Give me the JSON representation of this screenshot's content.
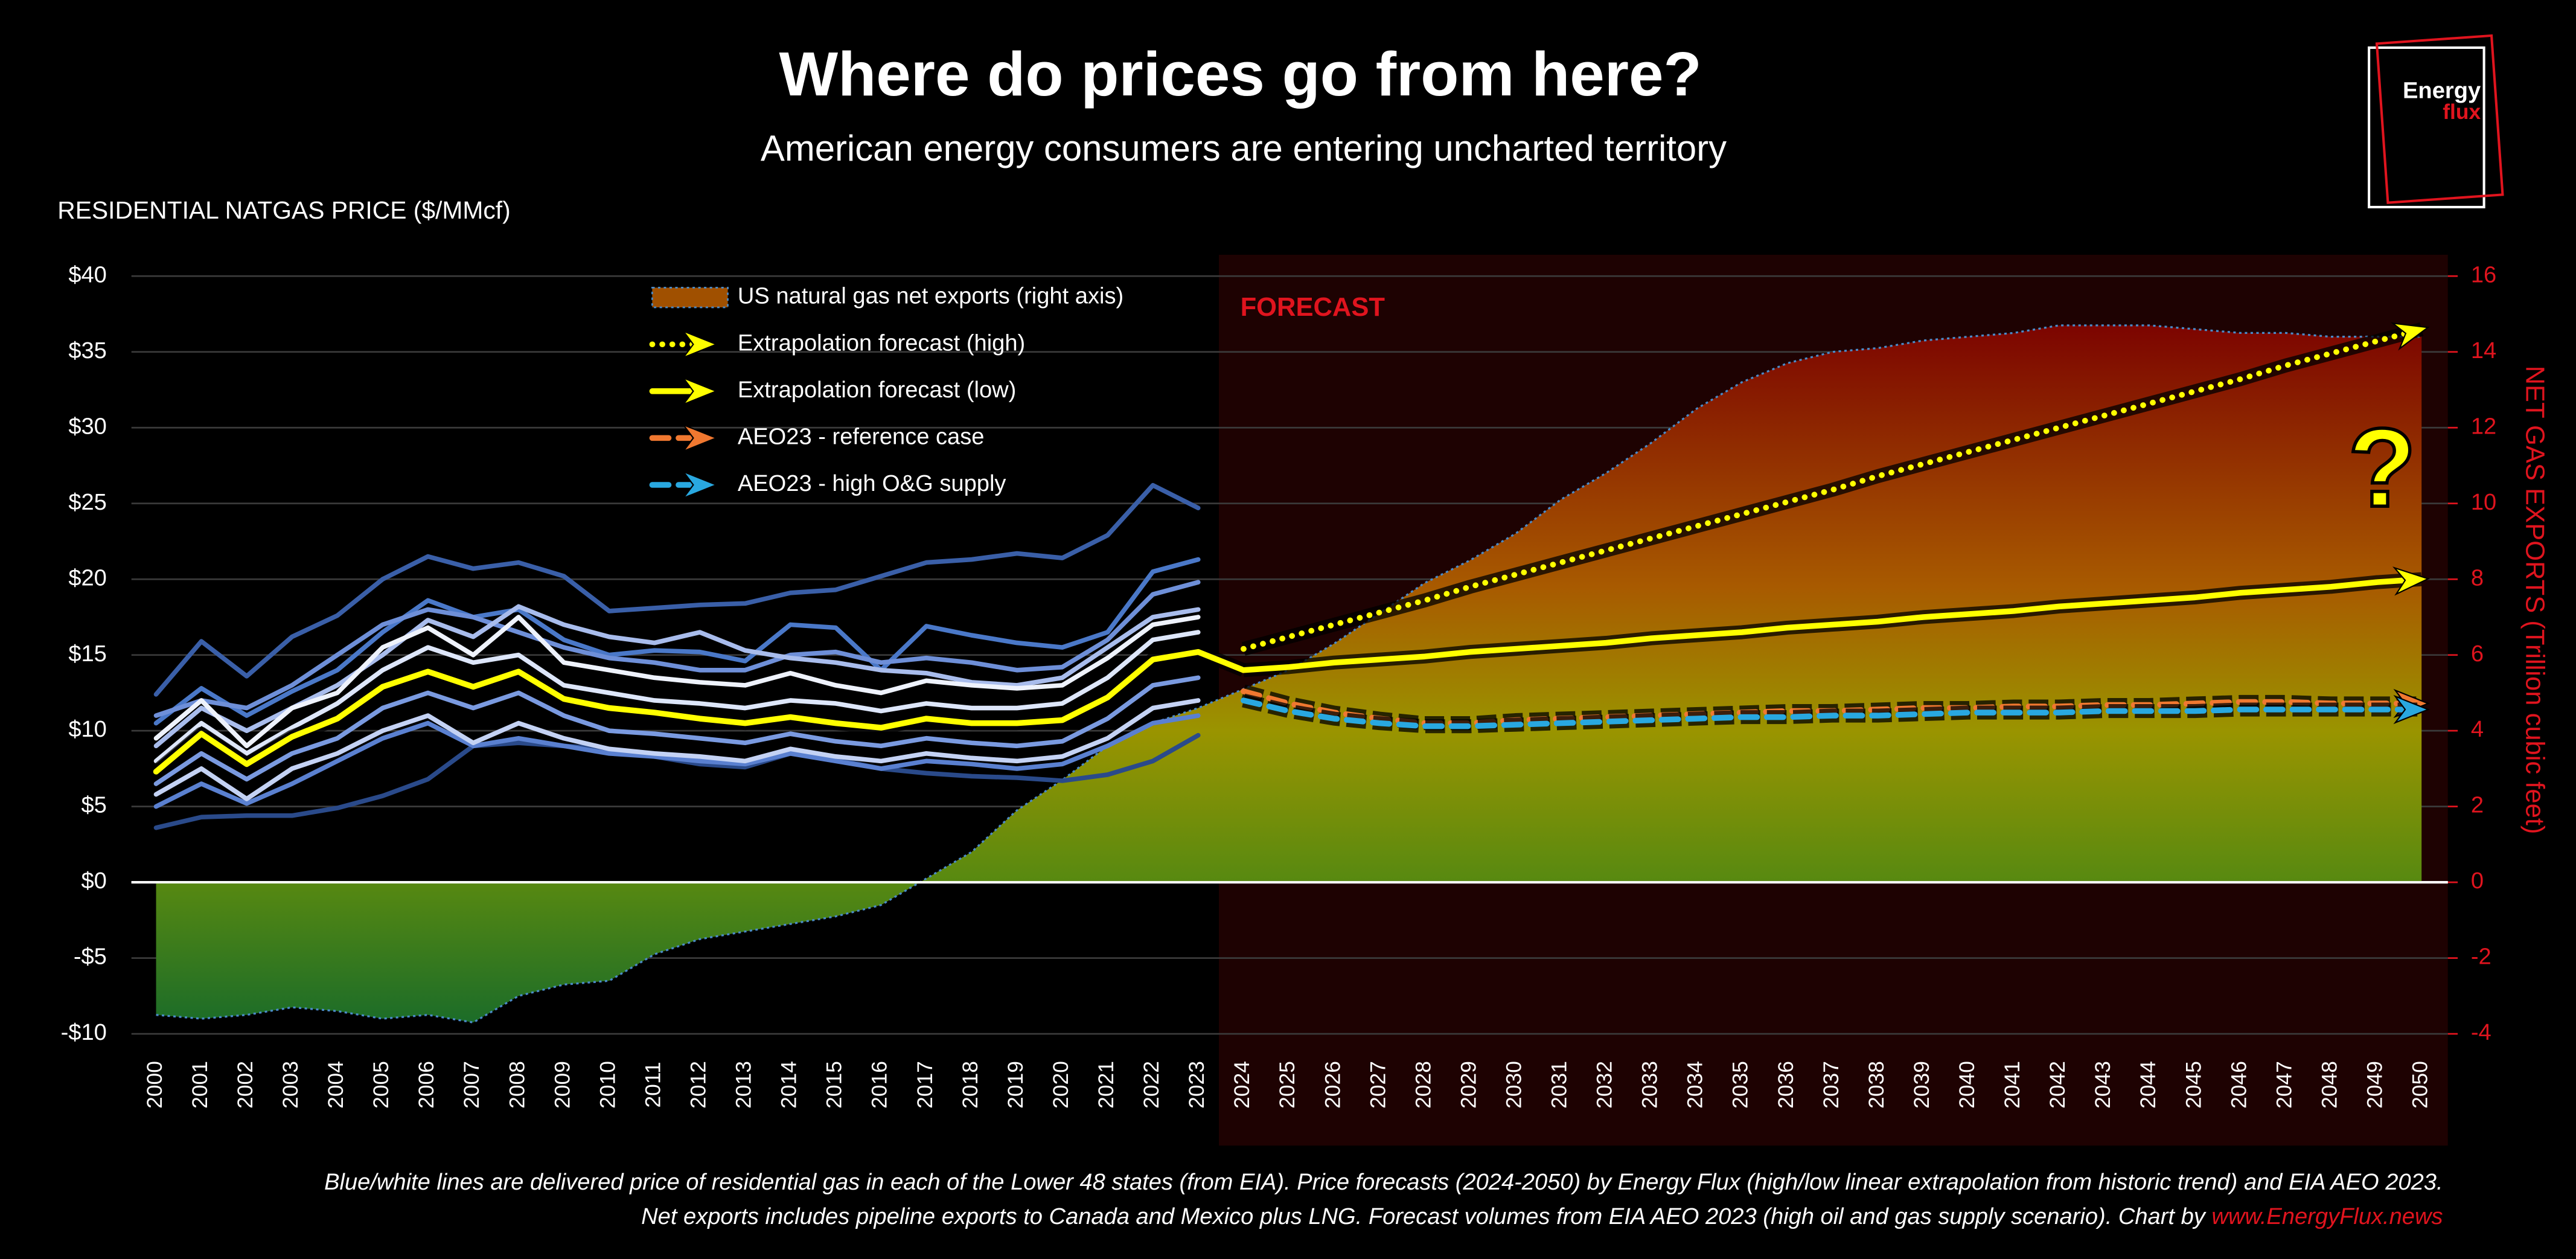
{
  "chart_data": {
    "type": "line",
    "title": "Where do prices go from here?",
    "subtitle": "American energy consumers are entering uncharted territory",
    "y_label": "RESIDENTIAL NATGAS PRICE ($/MMcf)",
    "y2_label": "NET GAS EXPORTS  (Trillion cubic feet)",
    "annotations": [
      "FORECAST",
      "?"
    ],
    "footnote": [
      "Blue/white lines are delivered price of residential gas in each of the Lower 48 states (from EIA). Price forecasts (2024-2050) by Energy Flux (high/low linear extrapolation from historic trend) and EIA AEO 2023.",
      "Net exports includes pipeline exports to Canada and Mexico plus LNG. Forecast volumes from EIA AEO 2023 (high oil and gas supply scenario). Chart by "
    ],
    "footnote_link": "www.EnergyFlux.news",
    "logo": [
      "Energy",
      "flux"
    ],
    "categories": [
      "2000",
      "2001",
      "2002",
      "2003",
      "2004",
      "2005",
      "2006",
      "2007",
      "2008",
      "2009",
      "2010",
      "2011",
      "2012",
      "2013",
      "2014",
      "2015",
      "2016",
      "2017",
      "2018",
      "2019",
      "2020",
      "2021",
      "2022",
      "2023",
      "2024",
      "2025",
      "2026",
      "2027",
      "2028",
      "2029",
      "2030",
      "2031",
      "2032",
      "2033",
      "2034",
      "2035",
      "2036",
      "2037",
      "2038",
      "2039",
      "2040",
      "2041",
      "2042",
      "2043",
      "2044",
      "2045",
      "2046",
      "2047",
      "2048",
      "2049",
      "2050"
    ],
    "ylim": [
      -10,
      40
    ],
    "yticks": [
      {
        "value": -10,
        "label": "-$10"
      },
      {
        "value": -5,
        "label": "-$5"
      },
      {
        "value": 0,
        "label": "$0"
      },
      {
        "value": 5,
        "label": "$5"
      },
      {
        "value": 10,
        "label": "$10"
      },
      {
        "value": 15,
        "label": "$15"
      },
      {
        "value": 20,
        "label": "$20"
      },
      {
        "value": 25,
        "label": "$25"
      },
      {
        "value": 30,
        "label": "$30"
      },
      {
        "value": 35,
        "label": "$35"
      },
      {
        "value": 40,
        "label": "$40"
      }
    ],
    "y2lim": [
      -4,
      16
    ],
    "y2ticks": [
      -4,
      -2,
      0,
      2,
      4,
      6,
      8,
      10,
      12,
      14,
      16
    ],
    "grid": true,
    "forecast_from": "2024",
    "series": [
      {
        "name": "US natural gas net exports (right axis)",
        "type": "area",
        "axis": "y2",
        "color": "#a05000",
        "values": [
          -3.5,
          -3.6,
          -3.5,
          -3.3,
          -3.4,
          -3.6,
          -3.5,
          -3.7,
          -3.0,
          -2.7,
          -2.6,
          -1.9,
          -1.5,
          -1.3,
          -1.1,
          -0.9,
          -0.6,
          0.1,
          0.8,
          1.9,
          2.7,
          3.6,
          4.2,
          4.6,
          5.1,
          5.6,
          6.3,
          7.1,
          7.9,
          8.5,
          9.2,
          10.1,
          10.8,
          11.6,
          12.5,
          13.2,
          13.7,
          14.0,
          14.1,
          14.3,
          14.4,
          14.5,
          14.7,
          14.7,
          14.7,
          14.6,
          14.5,
          14.5,
          14.4,
          14.4,
          14.4
        ]
      },
      {
        "color": "#3a5fa8",
        "style": "solid",
        "values": [
          12.4,
          15.9,
          13.6,
          16.2,
          17.6,
          20.0,
          21.5,
          20.7,
          21.1,
          20.2,
          17.9,
          18.1,
          18.3,
          18.4,
          19.1,
          19.3,
          20.2,
          21.1,
          21.3,
          21.7,
          21.4,
          22.9,
          26.2,
          24.7,
          null,
          null,
          null,
          null,
          null,
          null,
          null,
          null,
          null,
          null,
          null,
          null,
          null,
          null,
          null,
          null,
          null,
          null,
          null,
          null,
          null,
          null,
          null,
          null,
          null,
          null,
          null
        ]
      },
      {
        "color": "#2a4a8a",
        "style": "solid",
        "values": [
          3.6,
          4.3,
          4.4,
          4.4,
          4.9,
          5.7,
          6.8,
          9.0,
          9.2,
          9.0,
          8.8,
          8.3,
          7.8,
          7.6,
          8.5,
          8.1,
          7.5,
          7.2,
          7.0,
          6.9,
          6.7,
          7.1,
          8.0,
          9.7,
          null,
          null,
          null,
          null,
          null,
          null,
          null,
          null,
          null,
          null,
          null,
          null,
          null,
          null,
          null,
          null,
          null,
          null,
          null,
          null,
          null,
          null,
          null,
          null,
          null,
          null,
          null
        ]
      },
      {
        "color": "#4a78c8",
        "style": "solid",
        "values": [
          10.5,
          12.8,
          11.0,
          12.6,
          14.0,
          16.5,
          18.6,
          17.5,
          18.0,
          16.0,
          15.0,
          15.3,
          15.2,
          14.6,
          17.0,
          16.8,
          14.0,
          16.9,
          16.3,
          15.8,
          15.5,
          16.5,
          20.5,
          21.3,
          null,
          null,
          null,
          null,
          null,
          null,
          null,
          null,
          null,
          null,
          null,
          null,
          null,
          null,
          null,
          null,
          null,
          null,
          null,
          null,
          null,
          null,
          null,
          null,
          null,
          null,
          null
        ]
      },
      {
        "color": "#6e8fd8",
        "style": "solid",
        "values": [
          11.0,
          12.0,
          11.5,
          13.0,
          15.0,
          17.0,
          18.0,
          17.5,
          16.5,
          15.5,
          14.8,
          14.5,
          14.0,
          14.0,
          15.0,
          15.2,
          14.5,
          14.8,
          14.5,
          14.0,
          14.2,
          16.0,
          19.0,
          19.8,
          null,
          null,
          null,
          null,
          null,
          null,
          null,
          null,
          null,
          null,
          null,
          null,
          null,
          null,
          null,
          null,
          null,
          null,
          null,
          null,
          null,
          null,
          null,
          null,
          null,
          null,
          null
        ]
      },
      {
        "color": "#5a80d0",
        "style": "solid",
        "values": [
          5.0,
          6.5,
          5.2,
          6.5,
          8.0,
          9.5,
          10.5,
          9.0,
          9.5,
          9.0,
          8.5,
          8.3,
          8.0,
          7.8,
          8.5,
          8.0,
          7.5,
          8.0,
          7.8,
          7.5,
          7.8,
          9.0,
          10.5,
          11.0,
          null,
          null,
          null,
          null,
          null,
          null,
          null,
          null,
          null,
          null,
          null,
          null,
          null,
          null,
          null,
          null,
          null,
          null,
          null,
          null,
          null,
          null,
          null,
          null,
          null,
          null,
          null
        ]
      },
      {
        "color": "#7a9ae0",
        "style": "solid",
        "values": [
          6.5,
          8.5,
          6.8,
          8.5,
          9.5,
          11.5,
          12.5,
          11.5,
          12.5,
          11.0,
          10.0,
          9.8,
          9.5,
          9.2,
          9.8,
          9.3,
          9.0,
          9.5,
          9.2,
          9.0,
          9.3,
          10.8,
          13.0,
          13.5,
          null,
          null,
          null,
          null,
          null,
          null,
          null,
          null,
          null,
          null,
          null,
          null,
          null,
          null,
          null,
          null,
          null,
          null,
          null,
          null,
          null,
          null,
          null,
          null,
          null,
          null,
          null
        ]
      },
      {
        "color": "#a8bcec",
        "style": "solid",
        "values": [
          9.0,
          11.5,
          10.0,
          11.5,
          13.0,
          15.0,
          17.3,
          16.2,
          18.2,
          17.0,
          16.2,
          15.8,
          16.5,
          15.3,
          14.8,
          14.5,
          14.0,
          13.8,
          13.2,
          13.0,
          13.5,
          15.5,
          17.5,
          18.0,
          null,
          null,
          null,
          null,
          null,
          null,
          null,
          null,
          null,
          null,
          null,
          null,
          null,
          null,
          null,
          null,
          null,
          null,
          null,
          null,
          null,
          null,
          null,
          null,
          null,
          null,
          null
        ]
      },
      {
        "color": "#c4d2f4",
        "style": "solid",
        "values": [
          5.8,
          7.5,
          5.5,
          7.5,
          8.5,
          10.0,
          11.0,
          9.2,
          10.5,
          9.5,
          8.8,
          8.5,
          8.3,
          8.0,
          8.8,
          8.3,
          8.0,
          8.5,
          8.2,
          8.0,
          8.3,
          9.5,
          11.5,
          12.0,
          null,
          null,
          null,
          null,
          null,
          null,
          null,
          null,
          null,
          null,
          null,
          null,
          null,
          null,
          null,
          null,
          null,
          null,
          null,
          null,
          null,
          null,
          null,
          null,
          null,
          null,
          null
        ]
      },
      {
        "color": "#dde6fa",
        "style": "solid",
        "values": [
          8.0,
          10.5,
          8.5,
          10.2,
          11.8,
          14.0,
          15.5,
          14.5,
          15.0,
          13.0,
          12.5,
          12.0,
          11.8,
          11.5,
          12.0,
          11.8,
          11.3,
          11.8,
          11.5,
          11.5,
          11.8,
          13.5,
          16.0,
          16.5,
          null,
          null,
          null,
          null,
          null,
          null,
          null,
          null,
          null,
          null,
          null,
          null,
          null,
          null,
          null,
          null,
          null,
          null,
          null,
          null,
          null,
          null,
          null,
          null,
          null,
          null,
          null
        ]
      },
      {
        "color": "#eef2fc",
        "style": "solid",
        "values": [
          9.5,
          12.0,
          9.0,
          11.5,
          12.5,
          15.5,
          16.8,
          15.0,
          17.5,
          14.5,
          14.0,
          13.5,
          13.2,
          13.0,
          13.8,
          13.0,
          12.5,
          13.3,
          13.0,
          12.8,
          13.0,
          14.8,
          17.0,
          17.5,
          null,
          null,
          null,
          null,
          null,
          null,
          null,
          null,
          null,
          null,
          null,
          null,
          null,
          null,
          null,
          null,
          null,
          null,
          null,
          null,
          null,
          null,
          null,
          null,
          null,
          null,
          null
        ]
      },
      {
        "color": "#ffff00",
        "style": "solid",
        "values": [
          7.3,
          9.8,
          7.8,
          9.6,
          10.8,
          12.9,
          13.9,
          12.9,
          13.9,
          12.1,
          11.5,
          11.2,
          10.8,
          10.5,
          10.9,
          10.5,
          10.2,
          10.8,
          10.5,
          10.5,
          10.7,
          12.2,
          14.7,
          15.2,
          14.0,
          null,
          null,
          null,
          null,
          null,
          null,
          null,
          null,
          null,
          null,
          null,
          null,
          null,
          null,
          null,
          null,
          null,
          null,
          null,
          null,
          null,
          null,
          null,
          null,
          null,
          null
        ]
      },
      {
        "name": "Extrapolation forecast (high)",
        "color": "#ffff00",
        "style": "dotted",
        "values": [
          null,
          null,
          null,
          null,
          null,
          null,
          null,
          null,
          null,
          null,
          null,
          null,
          null,
          null,
          null,
          null,
          null,
          null,
          null,
          null,
          null,
          null,
          null,
          null,
          15.4,
          16.2,
          17.0,
          17.8,
          18.6,
          19.5,
          20.3,
          21.1,
          21.9,
          22.7,
          23.5,
          24.3,
          25.1,
          25.9,
          26.8,
          27.6,
          28.4,
          29.2,
          30.0,
          30.8,
          31.6,
          32.4,
          33.2,
          34.1,
          34.9,
          35.7,
          36.5
        ]
      },
      {
        "name": "Extrapolation forecast (low)",
        "color": "#ffff00",
        "style": "solid",
        "values": [
          null,
          null,
          null,
          null,
          null,
          null,
          null,
          null,
          null,
          null,
          null,
          null,
          null,
          null,
          null,
          null,
          null,
          null,
          null,
          null,
          null,
          null,
          null,
          null,
          14.0,
          14.2,
          14.5,
          14.7,
          14.9,
          15.2,
          15.4,
          15.6,
          15.8,
          16.1,
          16.3,
          16.5,
          16.8,
          17.0,
          17.2,
          17.5,
          17.7,
          17.9,
          18.2,
          18.4,
          18.6,
          18.8,
          19.1,
          19.3,
          19.5,
          19.8,
          20.0
        ]
      },
      {
        "name": "AEO23 - reference case",
        "color": "#f07830",
        "style": "dashed",
        "values": [
          null,
          null,
          null,
          null,
          null,
          null,
          null,
          null,
          null,
          null,
          null,
          null,
          null,
          null,
          null,
          null,
          null,
          null,
          null,
          null,
          null,
          null,
          null,
          null,
          12.6,
          11.8,
          11.2,
          10.8,
          10.5,
          10.5,
          10.7,
          10.8,
          10.9,
          11.0,
          11.1,
          11.2,
          11.3,
          11.3,
          11.4,
          11.5,
          11.5,
          11.6,
          11.6,
          11.7,
          11.7,
          11.8,
          11.9,
          11.9,
          11.8,
          11.8,
          11.8
        ]
      },
      {
        "name": "AEO23 - high O&G supply",
        "color": "#29a8e0",
        "style": "dashed",
        "values": [
          null,
          null,
          null,
          null,
          null,
          null,
          null,
          null,
          null,
          null,
          null,
          null,
          null,
          null,
          null,
          null,
          null,
          null,
          null,
          null,
          null,
          null,
          null,
          null,
          12.0,
          11.3,
          10.8,
          10.5,
          10.3,
          10.3,
          10.4,
          10.5,
          10.6,
          10.7,
          10.8,
          10.9,
          10.9,
          11.0,
          11.0,
          11.1,
          11.2,
          11.2,
          11.2,
          11.3,
          11.3,
          11.3,
          11.4,
          11.4,
          11.4,
          11.4,
          11.4
        ]
      }
    ]
  }
}
